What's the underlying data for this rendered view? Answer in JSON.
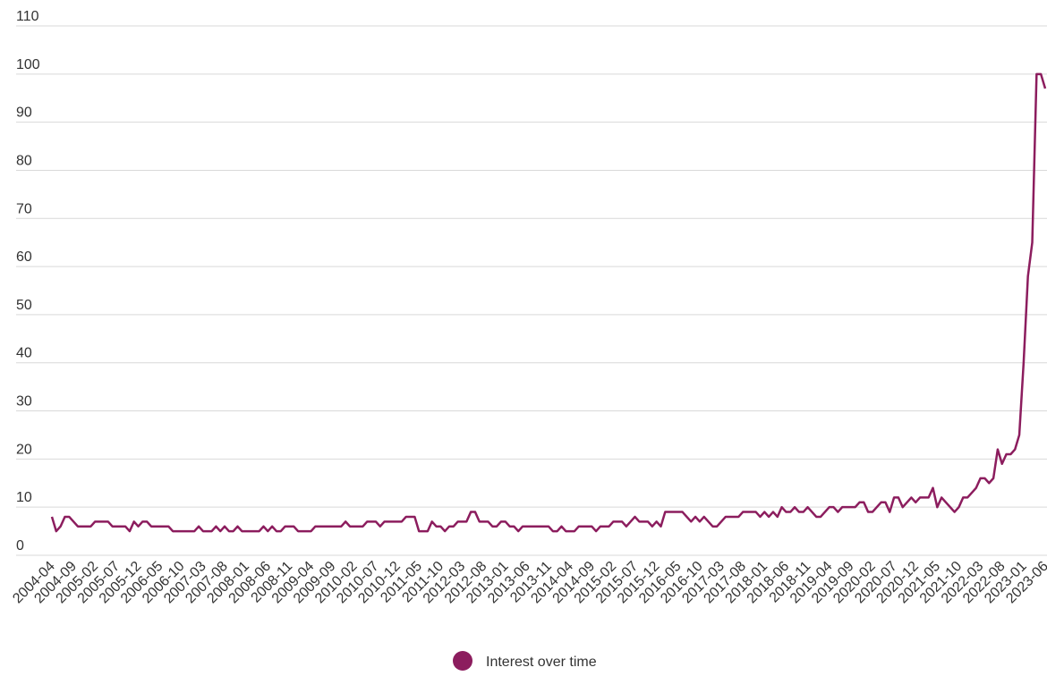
{
  "chart_data": {
    "type": "line",
    "categories": [
      "2004-04",
      null,
      null,
      null,
      null,
      "2004-09",
      null,
      null,
      null,
      null,
      "2005-02",
      null,
      null,
      null,
      null,
      "2005-07",
      null,
      null,
      null,
      null,
      "2005-12",
      null,
      null,
      null,
      null,
      "2006-05",
      null,
      null,
      null,
      null,
      "2006-10",
      null,
      null,
      null,
      null,
      "2007-03",
      null,
      null,
      null,
      null,
      "2007-08",
      null,
      null,
      null,
      null,
      "2008-01",
      null,
      null,
      null,
      null,
      "2008-06",
      null,
      null,
      null,
      null,
      "2008-11",
      null,
      null,
      null,
      null,
      "2009-04",
      null,
      null,
      null,
      null,
      "2009-09",
      null,
      null,
      null,
      null,
      "2010-02",
      null,
      null,
      null,
      null,
      "2010-07",
      null,
      null,
      null,
      null,
      "2010-12",
      null,
      null,
      null,
      null,
      "2011-05",
      null,
      null,
      null,
      null,
      "2011-10",
      null,
      null,
      null,
      null,
      "2012-03",
      null,
      null,
      null,
      null,
      "2012-08",
      null,
      null,
      null,
      null,
      "2013-01",
      null,
      null,
      null,
      null,
      "2013-06",
      null,
      null,
      null,
      null,
      "2013-11",
      null,
      null,
      null,
      null,
      "2014-04",
      null,
      null,
      null,
      null,
      "2014-09",
      null,
      null,
      null,
      null,
      "2015-02",
      null,
      null,
      null,
      null,
      "2015-07",
      null,
      null,
      null,
      null,
      "2015-12",
      null,
      null,
      null,
      null,
      "2016-05",
      null,
      null,
      null,
      null,
      "2016-10",
      null,
      null,
      null,
      null,
      "2017-03",
      null,
      null,
      null,
      null,
      "2017-08",
      null,
      null,
      null,
      null,
      "2018-01",
      null,
      null,
      null,
      null,
      "2018-06",
      null,
      null,
      null,
      null,
      "2018-11",
      null,
      null,
      null,
      null,
      "2019-04",
      null,
      null,
      null,
      null,
      "2019-09",
      null,
      null,
      null,
      null,
      "2020-02",
      null,
      null,
      null,
      null,
      "2020-07",
      null,
      null,
      null,
      null,
      "2020-12",
      null,
      null,
      null,
      null,
      "2021-05",
      null,
      null,
      null,
      null,
      "2021-10",
      null,
      null,
      null,
      null,
      "2022-03",
      null,
      null,
      null,
      null,
      "2022-08",
      null,
      null,
      null,
      null,
      "2023-01",
      null,
      null,
      null,
      null,
      "2023-06"
    ],
    "series": [
      {
        "name": "Interest over time",
        "color": "#8c1d5e",
        "values": [
          8,
          5,
          6,
          8,
          8,
          7,
          6,
          6,
          6,
          6,
          7,
          7,
          7,
          7,
          6,
          6,
          6,
          6,
          5,
          7,
          6,
          7,
          7,
          6,
          6,
          6,
          6,
          6,
          5,
          5,
          5,
          5,
          5,
          5,
          6,
          5,
          5,
          5,
          6,
          5,
          6,
          5,
          5,
          6,
          5,
          5,
          5,
          5,
          5,
          6,
          5,
          6,
          5,
          5,
          6,
          6,
          6,
          5,
          5,
          5,
          5,
          6,
          6,
          6,
          6,
          6,
          6,
          6,
          7,
          6,
          6,
          6,
          6,
          7,
          7,
          7,
          6,
          7,
          7,
          7,
          7,
          7,
          8,
          8,
          8,
          5,
          5,
          5,
          7,
          6,
          6,
          5,
          6,
          6,
          7,
          7,
          7,
          9,
          9,
          7,
          7,
          7,
          6,
          6,
          7,
          7,
          6,
          6,
          5,
          6,
          6,
          6,
          6,
          6,
          6,
          6,
          5,
          5,
          6,
          5,
          5,
          5,
          6,
          6,
          6,
          6,
          5,
          6,
          6,
          6,
          7,
          7,
          7,
          6,
          7,
          8,
          7,
          7,
          7,
          6,
          7,
          6,
          9,
          9,
          9,
          9,
          9,
          8,
          7,
          8,
          7,
          8,
          7,
          6,
          6,
          7,
          8,
          8,
          8,
          8,
          9,
          9,
          9,
          9,
          8,
          9,
          8,
          9,
          8,
          10,
          9,
          9,
          10,
          9,
          9,
          10,
          9,
          8,
          8,
          9,
          10,
          10,
          9,
          10,
          10,
          10,
          10,
          11,
          11,
          9,
          9,
          10,
          11,
          11,
          9,
          12,
          12,
          10,
          11,
          12,
          11,
          12,
          12,
          12,
          14,
          10,
          12,
          11,
          10,
          9,
          10,
          12,
          12,
          13,
          14,
          16,
          16,
          15,
          16,
          22,
          19,
          21,
          21,
          22,
          25,
          40,
          58,
          65,
          100,
          100,
          97
        ]
      }
    ],
    "ylim": [
      0,
      110
    ],
    "yticks": [
      0,
      10,
      20,
      30,
      40,
      50,
      60,
      70,
      80,
      90,
      100,
      110
    ],
    "grid": true,
    "legend": "bottom"
  }
}
